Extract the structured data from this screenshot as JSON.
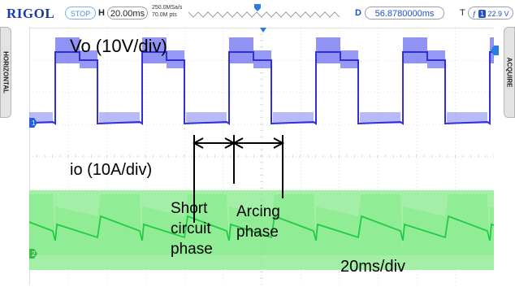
{
  "header": {
    "logo": "RIGOL",
    "run_state": "STOP",
    "timebase_label": "H",
    "timebase": "20.00ms",
    "sample_rate": "250.0MSa/s",
    "memory_depth": "70.0M pts",
    "delay_label": "D",
    "delay": "56.8780000ms",
    "trigger_label": "T",
    "trigger_source": "1",
    "trigger_level": "22.9 V"
  },
  "side": {
    "left_tab": "HORIZONTAL",
    "right_tab": "ACQUIRE"
  },
  "channels": [
    {
      "marker": "1",
      "label": "Vo (10V/div)",
      "color": "#3030d8",
      "envelope_color": "#7c80f2"
    },
    {
      "marker": "2",
      "label": "io (10A/div)",
      "color": "#22cc44",
      "envelope_color": "#86ea8a"
    }
  ],
  "annotations": {
    "short_circuit": [
      "Short",
      "circuit",
      "phase"
    ],
    "arcing": [
      "Arcing",
      "phase"
    ],
    "timebase": "20ms/div"
  },
  "colors": {
    "grid": "#c8c8c8",
    "marker_blue": "#2060e0",
    "trigger_marker": "#2a7de0"
  }
}
